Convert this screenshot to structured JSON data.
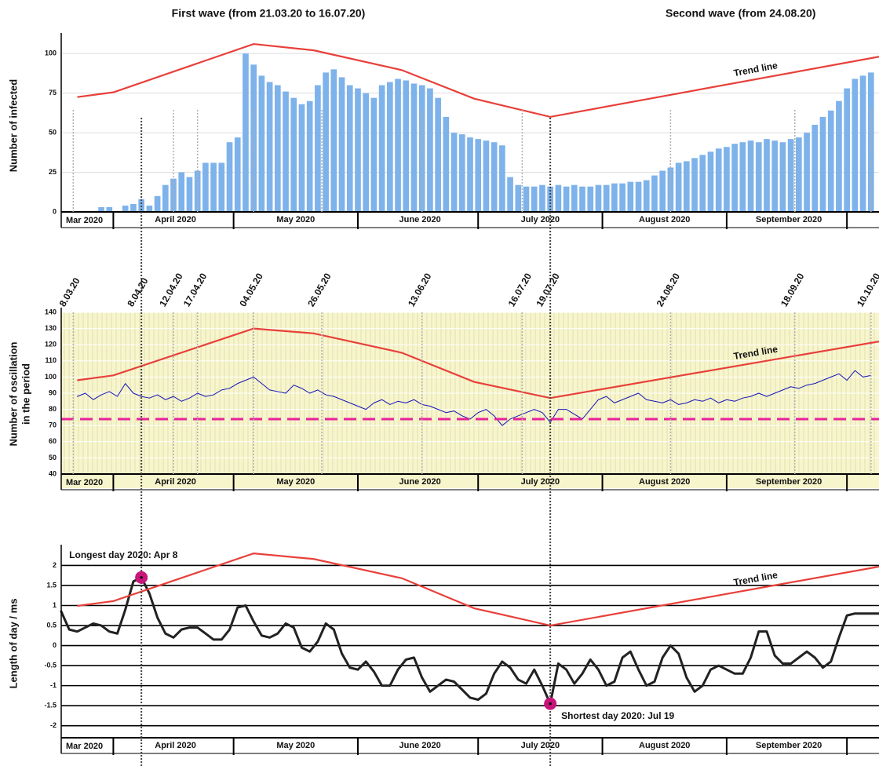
{
  "header": {
    "first_wave": "First wave (from 21.03.20 to 16.07.20)",
    "second_wave": "Second wave (from 24.08.20)"
  },
  "date_markers": [
    {
      "label": "8.03.20",
      "x": 21
    },
    {
      "label": "8.04.20",
      "x": 38
    },
    {
      "label": "12.04.20",
      "x": 46
    },
    {
      "label": "17.04.20",
      "x": 52
    },
    {
      "label": "04.05.20",
      "x": 66
    },
    {
      "label": "26.05.20",
      "x": 83
    },
    {
      "label": "13.06.20",
      "x": 108
    },
    {
      "label": "16.07.20",
      "x": 133
    },
    {
      "label": "19.07.20",
      "x": 140
    },
    {
      "label": "24.08.20",
      "x": 170
    },
    {
      "label": "18.09.20",
      "x": 201
    },
    {
      "label": "10.10.20",
      "x": 220
    }
  ],
  "chart_data": [
    {
      "type": "bar",
      "ylabel": "Number of infected",
      "color": "#7eb2ea",
      "xlim": [
        18,
        222
      ],
      "xticks": [
        31,
        61,
        92,
        122,
        153,
        184,
        214
      ],
      "month_labels": [
        "Mar 2020",
        "April 2020",
        "May 2020",
        "June 2020",
        "July 2020",
        "August 2020",
        "September 2020",
        "October 2020"
      ],
      "ylim": [
        0,
        110
      ],
      "yticks": [
        0,
        25,
        50,
        75,
        100
      ],
      "grid": true,
      "grid_color": "#dddddd",
      "x": [
        22,
        24,
        26,
        28,
        30,
        32,
        34,
        36,
        38,
        40,
        42,
        44,
        46,
        48,
        50,
        52,
        54,
        56,
        58,
        60,
        62,
        64,
        66,
        68,
        70,
        72,
        74,
        76,
        78,
        80,
        82,
        84,
        86,
        88,
        90,
        92,
        94,
        96,
        98,
        100,
        102,
        104,
        106,
        108,
        110,
        112,
        114,
        116,
        118,
        120,
        122,
        124,
        126,
        128,
        130,
        132,
        134,
        136,
        138,
        140,
        142,
        144,
        146,
        148,
        150,
        152,
        154,
        156,
        158,
        160,
        162,
        164,
        166,
        168,
        170,
        172,
        174,
        176,
        178,
        180,
        182,
        184,
        186,
        188,
        190,
        192,
        194,
        196,
        198,
        200,
        202,
        204,
        206,
        208,
        210,
        212,
        214,
        216,
        218,
        220
      ],
      "values": [
        0,
        0,
        0,
        3,
        3,
        0,
        4,
        5,
        8,
        4,
        10,
        17,
        21,
        25,
        22,
        26,
        31,
        31,
        31,
        44,
        47,
        100,
        93,
        86,
        82,
        80,
        76,
        72,
        68,
        70,
        80,
        88,
        90,
        85,
        80,
        78,
        75,
        72,
        80,
        82,
        84,
        83,
        81,
        80,
        78,
        72,
        60,
        50,
        49,
        47,
        46,
        45,
        44,
        42,
        22,
        17,
        16,
        16,
        17,
        16,
        17,
        16,
        17,
        16,
        16,
        17,
        17,
        18,
        18,
        19,
        19,
        20,
        23,
        26,
        28,
        31,
        32,
        34,
        36,
        38,
        40,
        41,
        43,
        44,
        45,
        44,
        46,
        45,
        44,
        46,
        47,
        50,
        55,
        60,
        64,
        70,
        78,
        84,
        86,
        88
      ],
      "trend": {
        "name": "Trend line",
        "color": "#e8403a",
        "x": [
          22,
          31,
          66,
          81,
          103,
          121,
          140,
          222
        ],
        "values": [
          72.5,
          75.5,
          106,
          102,
          89.5,
          71.5,
          60,
          98
        ]
      }
    },
    {
      "type": "line",
      "ylabel": [
        "Number of oscillation",
        "in the period"
      ],
      "color": "#1414b8",
      "background": "#f7f5cc",
      "xlim": [
        18,
        222
      ],
      "xticks": [
        31,
        61,
        92,
        122,
        153,
        184,
        214
      ],
      "month_labels": [
        "Mar 2020",
        "April 2020",
        "May 2020",
        "June 2020",
        "July 2020",
        "August 2020",
        "September 2020",
        "October 2020"
      ],
      "ylim": [
        40,
        140
      ],
      "yticks": [
        40,
        50,
        60,
        70,
        80,
        90,
        100,
        110,
        120,
        130,
        140
      ],
      "grid": true,
      "grid_color": "#ffffff",
      "x": [
        22,
        24,
        26,
        28,
        30,
        32,
        34,
        36,
        38,
        40,
        42,
        44,
        46,
        48,
        50,
        52,
        54,
        56,
        58,
        60,
        62,
        64,
        66,
        68,
        70,
        72,
        74,
        76,
        78,
        80,
        82,
        84,
        86,
        88,
        90,
        92,
        94,
        96,
        98,
        100,
        102,
        104,
        106,
        108,
        110,
        112,
        114,
        116,
        118,
        120,
        122,
        124,
        126,
        128,
        130,
        132,
        134,
        136,
        138,
        140,
        142,
        144,
        146,
        148,
        150,
        152,
        154,
        156,
        158,
        160,
        162,
        164,
        166,
        168,
        170,
        172,
        174,
        176,
        178,
        180,
        182,
        184,
        186,
        188,
        190,
        192,
        194,
        196,
        198,
        200,
        202,
        204,
        206,
        208,
        210,
        212,
        214,
        216,
        218,
        220
      ],
      "values": [
        88,
        90,
        86,
        89,
        91,
        88,
        96,
        90,
        88,
        87,
        89,
        86,
        88,
        85,
        87,
        90,
        88,
        89,
        92,
        93,
        96,
        98,
        100,
        96,
        92,
        91,
        90,
        95,
        93,
        90,
        92,
        89,
        88,
        86,
        84,
        82,
        80,
        84,
        86,
        83,
        85,
        84,
        86,
        83,
        82,
        80,
        78,
        79,
        76,
        74,
        78,
        80,
        76,
        70,
        74,
        76,
        78,
        80,
        78,
        72,
        80,
        80,
        77,
        74,
        80,
        86,
        88,
        84,
        86,
        88,
        90,
        86,
        85,
        84,
        86,
        83,
        84,
        86,
        85,
        87,
        84,
        86,
        85,
        87,
        88,
        90,
        88,
        90,
        92,
        94,
        93,
        95,
        96,
        98,
        100,
        102,
        98,
        104,
        100,
        101
      ],
      "reference_line": {
        "value": 74,
        "color": "#e8239a"
      },
      "trend": {
        "name": "Trend line",
        "color": "#e8403a",
        "x": [
          22,
          31,
          66,
          81,
          103,
          121,
          140,
          222
        ],
        "values": [
          98,
          101,
          130,
          127,
          115,
          97,
          87,
          122
        ]
      }
    },
    {
      "type": "line",
      "ylabel": "Length of day / ms",
      "color": "#222222",
      "line_width": 3,
      "xlim": [
        18,
        222
      ],
      "xticks": [
        31,
        61,
        92,
        122,
        153,
        184,
        214
      ],
      "month_labels": [
        "Mar 2020",
        "April 2020",
        "May 2020",
        "June 2020",
        "July 2020",
        "August 2020",
        "September 2020",
        "October 2020"
      ],
      "ylim": [
        -2.3,
        2.4
      ],
      "yticks": [
        -2,
        -1.5,
        -1,
        -0.5,
        0,
        0.5,
        1,
        1.5,
        2
      ],
      "grid": true,
      "grid_color": "#000000",
      "x": [
        18,
        20,
        22,
        24,
        26,
        28,
        30,
        32,
        34,
        36,
        38,
        40,
        42,
        44,
        46,
        48,
        50,
        52,
        54,
        56,
        58,
        60,
        62,
        64,
        66,
        68,
        70,
        72,
        74,
        76,
        78,
        80,
        82,
        84,
        86,
        88,
        90,
        92,
        94,
        96,
        98,
        100,
        102,
        104,
        106,
        108,
        110,
        112,
        114,
        116,
        118,
        120,
        122,
        124,
        126,
        128,
        130,
        132,
        134,
        136,
        138,
        140,
        142,
        144,
        146,
        148,
        150,
        152,
        154,
        156,
        158,
        160,
        162,
        164,
        166,
        168,
        170,
        172,
        174,
        176,
        178,
        180,
        182,
        184,
        186,
        188,
        190,
        192,
        194,
        196,
        198,
        200,
        202,
        204,
        206,
        208,
        210,
        212,
        214,
        216,
        218,
        220,
        222
      ],
      "values": [
        0.85,
        0.4,
        0.35,
        0.45,
        0.55,
        0.5,
        0.35,
        0.3,
        0.9,
        1.6,
        1.7,
        1.3,
        0.7,
        0.3,
        0.2,
        0.4,
        0.45,
        0.45,
        0.3,
        0.15,
        0.15,
        0.4,
        0.95,
        1.0,
        0.6,
        0.25,
        0.2,
        0.3,
        0.55,
        0.45,
        -0.05,
        -0.15,
        0.1,
        0.55,
        0.4,
        -0.2,
        -0.55,
        -0.6,
        -0.4,
        -0.65,
        -1.0,
        -1.0,
        -0.6,
        -0.35,
        -0.3,
        -0.8,
        -1.15,
        -1.0,
        -0.85,
        -0.9,
        -1.1,
        -1.3,
        -1.35,
        -1.2,
        -0.7,
        -0.4,
        -0.55,
        -0.85,
        -0.95,
        -0.6,
        -1.0,
        -1.45,
        -0.45,
        -0.6,
        -0.95,
        -0.7,
        -0.35,
        -0.6,
        -1.0,
        -0.9,
        -0.3,
        -0.15,
        -0.6,
        -1.0,
        -0.9,
        -0.3,
        0.0,
        -0.2,
        -0.8,
        -1.15,
        -1.0,
        -0.6,
        -0.5,
        -0.6,
        -0.7,
        -0.7,
        -0.3,
        0.35,
        0.35,
        -0.25,
        -0.45,
        -0.45,
        -0.3,
        -0.15,
        -0.3,
        -0.55,
        -0.4,
        0.2,
        0.75,
        0.8,
        0.8,
        0.8,
        0.8
      ],
      "highlight_color": "#c8157a",
      "highlights": [
        {
          "label": "Longest day 2020: Apr 8",
          "x": 38,
          "y": 1.7
        },
        {
          "label": "Shortest day 2020: Jul 19",
          "x": 140,
          "y": -1.45
        }
      ],
      "trend": {
        "name": "Trend line",
        "color": "#e8403a",
        "x": [
          22,
          31,
          66,
          81,
          103,
          121,
          140,
          222
        ],
        "values": [
          0.99,
          1.11,
          2.3,
          2.16,
          1.68,
          0.93,
          0.5,
          1.97
        ]
      }
    }
  ]
}
